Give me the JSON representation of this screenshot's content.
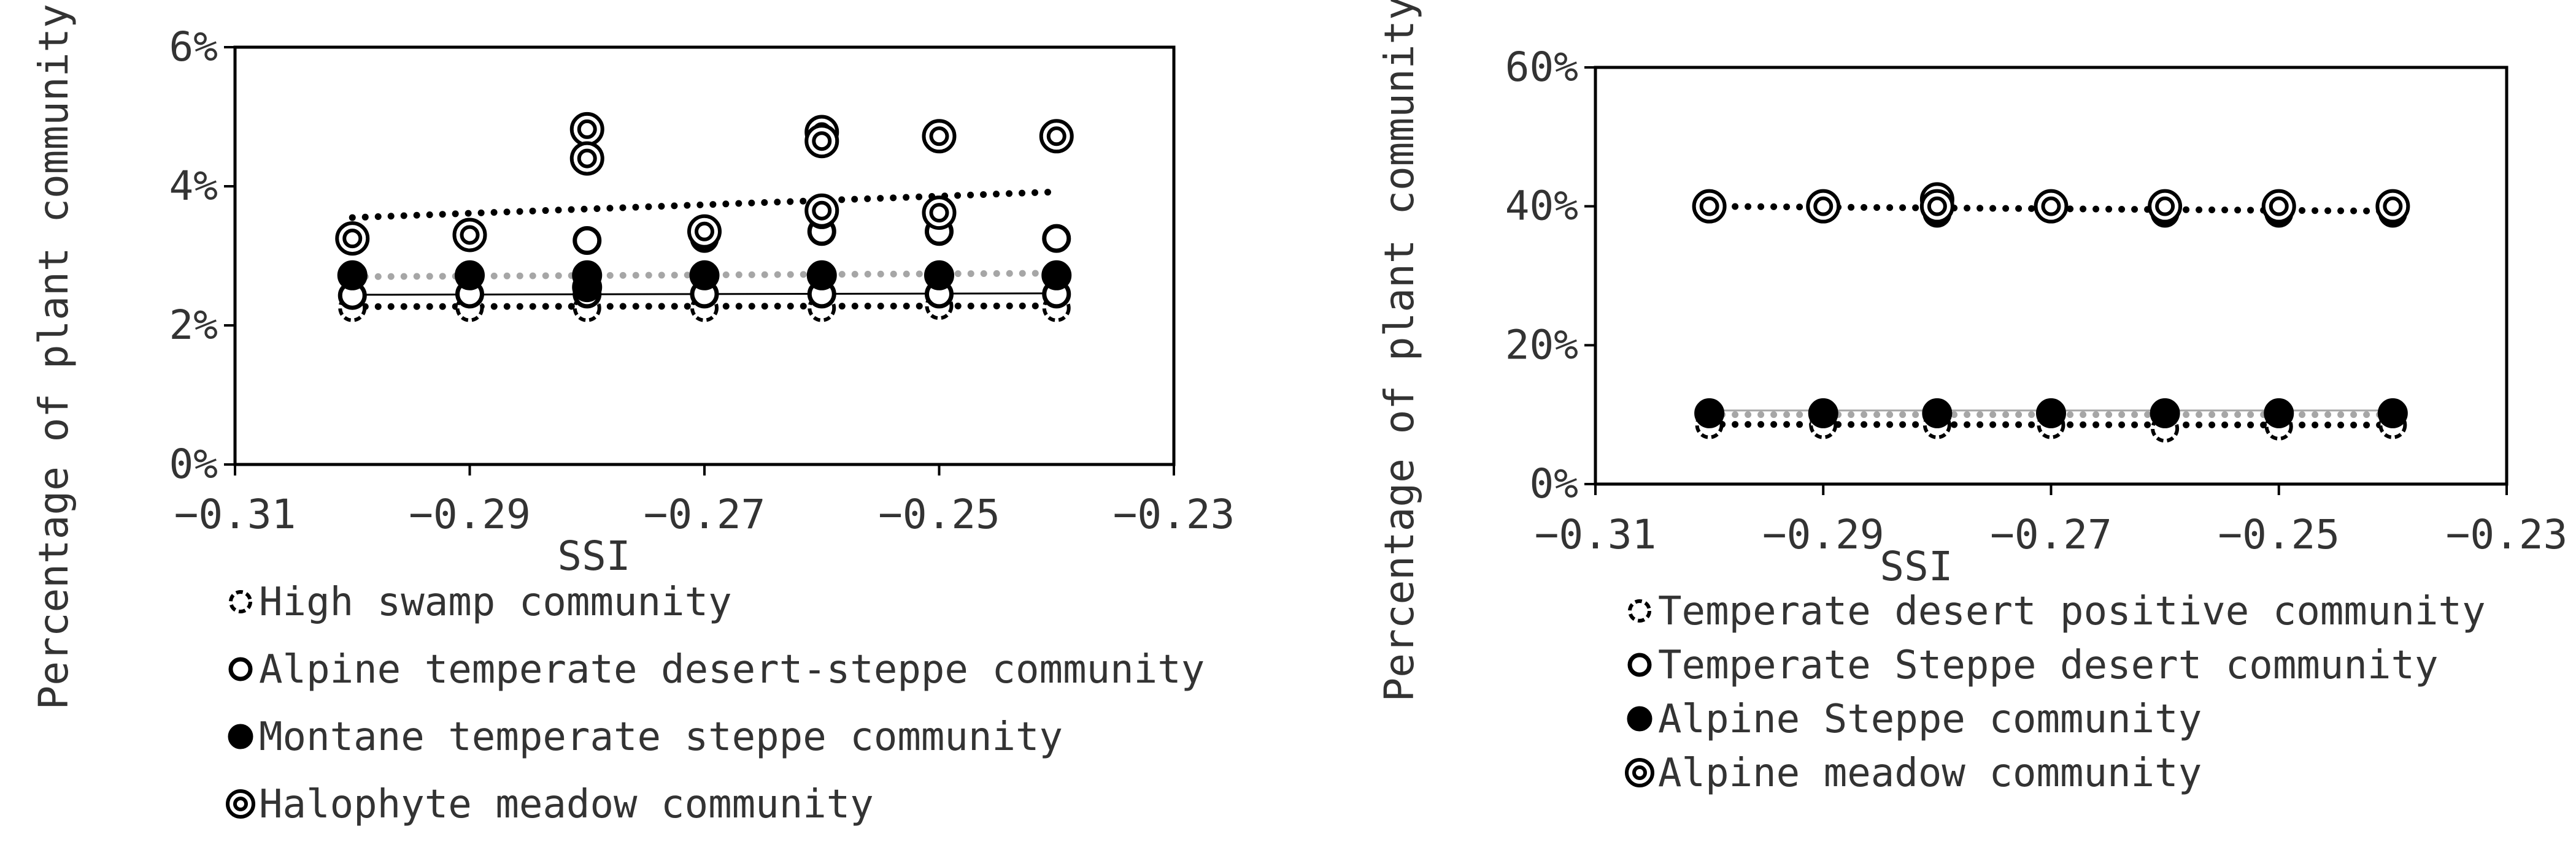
{
  "chart_data": [
    {
      "type": "scatter",
      "title": "",
      "xlabel": "SSI",
      "ylabel": "Percentage of plant community area",
      "xlim": [
        -0.31,
        -0.23
      ],
      "ylim": [
        0,
        6
      ],
      "x_ticks": [
        "-0.31",
        "-0.29",
        "-0.27",
        "-0.25",
        "-0.23"
      ],
      "y_ticks": [
        "0%",
        "2%",
        "4%",
        "6%"
      ],
      "y_unit": "%",
      "grid": false,
      "legend_position": "bottom",
      "series": [
        {
          "name": "High swamp community",
          "marker": "dashed-open-circle",
          "trend_line": "dotted-black",
          "points": [
            [
              -0.3,
              2.25
            ],
            [
              -0.29,
              2.25
            ],
            [
              -0.28,
              2.25
            ],
            [
              -0.27,
              2.25
            ],
            [
              -0.26,
              2.25
            ],
            [
              -0.25,
              2.28
            ],
            [
              -0.24,
              2.25
            ]
          ],
          "trend": [
            [
              -0.3,
              2.27
            ],
            [
              -0.24,
              2.28
            ]
          ]
        },
        {
          "name": "Alpine temperate desert-steppe community",
          "marker": "open-circle",
          "trend_line": "thin-black",
          "points": [
            [
              -0.3,
              2.43
            ],
            [
              -0.29,
              2.45
            ],
            [
              -0.28,
              2.45
            ],
            [
              -0.27,
              2.45
            ],
            [
              -0.26,
              2.45
            ],
            [
              -0.25,
              2.45
            ],
            [
              -0.24,
              2.45
            ],
            [
              -0.3,
              3.25
            ],
            [
              -0.29,
              3.3
            ],
            [
              -0.28,
              3.22
            ],
            [
              -0.27,
              3.25
            ],
            [
              -0.26,
              3.35
            ],
            [
              -0.25,
              3.35
            ],
            [
              -0.24,
              3.25
            ]
          ],
          "trend": [
            [
              -0.3,
              2.44
            ],
            [
              -0.24,
              2.46
            ]
          ]
        },
        {
          "name": "Montane temperate steppe community",
          "marker": "filled-circle",
          "trend_line": "dotted-gray",
          "points": [
            [
              -0.3,
              2.72
            ],
            [
              -0.29,
              2.72
            ],
            [
              -0.28,
              2.72
            ],
            [
              -0.27,
              2.72
            ],
            [
              -0.26,
              2.72
            ],
            [
              -0.25,
              2.72
            ],
            [
              -0.24,
              2.72
            ],
            [
              -0.28,
              2.55
            ],
            [
              -0.26,
              3.6
            ]
          ],
          "trend": [
            [
              -0.3,
              2.7
            ],
            [
              -0.24,
              2.75
            ]
          ]
        },
        {
          "name": "Halophyte meadow community",
          "marker": "double-circle",
          "trend_line": "dotted-black",
          "points": [
            [
              -0.3,
              3.25
            ],
            [
              -0.29,
              3.3
            ],
            [
              -0.28,
              4.82
            ],
            [
              -0.28,
              4.4
            ],
            [
              -0.27,
              3.35
            ],
            [
              -0.26,
              4.78
            ],
            [
              -0.26,
              4.65
            ],
            [
              -0.26,
              3.65
            ],
            [
              -0.25,
              4.72
            ],
            [
              -0.25,
              3.62
            ],
            [
              -0.24,
              4.72
            ]
          ],
          "trend": [
            [
              -0.3,
              3.55
            ],
            [
              -0.24,
              3.92
            ]
          ]
        }
      ]
    },
    {
      "type": "scatter",
      "title": "",
      "xlabel": "SSI",
      "ylabel": "Percentage of plant community area",
      "xlim": [
        -0.31,
        -0.23
      ],
      "ylim": [
        0,
        60
      ],
      "x_ticks": [
        "-0.31",
        "-0.29",
        "-0.27",
        "-0.25",
        "-0.23"
      ],
      "y_ticks": [
        "0%",
        "20%",
        "40%",
        "60%"
      ],
      "y_unit": "%",
      "grid": false,
      "legend_position": "bottom",
      "series": [
        {
          "name": "Temperate desert positive community",
          "marker": "dashed-open-circle",
          "trend_line": "dotted-black",
          "points": [
            [
              -0.3,
              8.5
            ],
            [
              -0.29,
              8.5
            ],
            [
              -0.28,
              8.5
            ],
            [
              -0.27,
              8.5
            ],
            [
              -0.26,
              8.0
            ],
            [
              -0.25,
              8.3
            ],
            [
              -0.24,
              8.5
            ]
          ],
          "trend": [
            [
              -0.3,
              8.6
            ],
            [
              -0.24,
              8.5
            ]
          ]
        },
        {
          "name": "Temperate Steppe desert community",
          "marker": "open-circle",
          "trend_line": "thin-gray",
          "points": [
            [
              -0.3,
              40.0
            ],
            [
              -0.29,
              39.8
            ],
            [
              -0.28,
              39.0
            ],
            [
              -0.27,
              39.8
            ],
            [
              -0.26,
              39.0
            ],
            [
              -0.25,
              39.0
            ],
            [
              -0.24,
              39.0
            ]
          ],
          "trend": [
            [
              -0.3,
              10.6
            ],
            [
              -0.24,
              10.6
            ]
          ]
        },
        {
          "name": "Alpine Steppe community",
          "marker": "filled-circle",
          "trend_line": "dotted-gray",
          "points": [
            [
              -0.3,
              10.2
            ],
            [
              -0.29,
              10.2
            ],
            [
              -0.28,
              10.2
            ],
            [
              -0.27,
              10.2
            ],
            [
              -0.26,
              10.2
            ],
            [
              -0.25,
              10.2
            ],
            [
              -0.24,
              10.2
            ]
          ],
          "trend": [
            [
              -0.3,
              10.0
            ],
            [
              -0.24,
              10.0
            ]
          ]
        },
        {
          "name": "Alpine meadow community",
          "marker": "double-circle",
          "trend_line": "dotted-black",
          "points": [
            [
              -0.3,
              40.0
            ],
            [
              -0.29,
              40.0
            ],
            [
              -0.28,
              41.0
            ],
            [
              -0.28,
              40.0
            ],
            [
              -0.27,
              40.0
            ],
            [
              -0.26,
              40.0
            ],
            [
              -0.25,
              40.0
            ],
            [
              -0.24,
              40.0
            ]
          ],
          "trend": [
            [
              -0.3,
              40.0
            ],
            [
              -0.24,
              39.3
            ]
          ]
        }
      ]
    }
  ],
  "colors": {
    "black": "#000000",
    "gray": "#a6a6a6",
    "text": "#333333"
  }
}
